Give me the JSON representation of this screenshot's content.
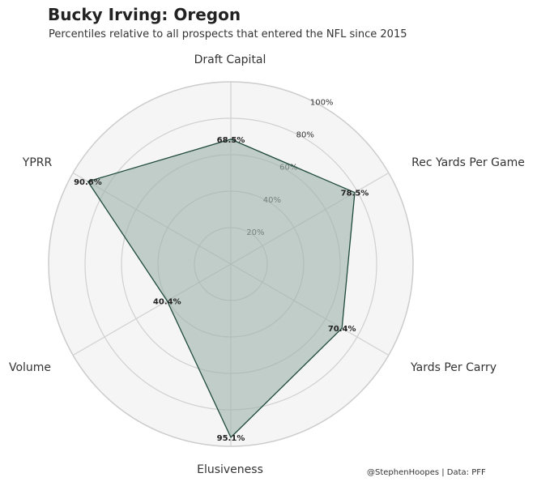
{
  "header": {
    "title": "Bucky Irving: Oregon",
    "subtitle": "Percentiles relative to all prospects that entered the NFL since 2015"
  },
  "footer": {
    "credit": "@StephenHoopes | Data: PFF"
  },
  "chart_data": {
    "type": "radar",
    "title": "Bucky Irving: Oregon",
    "subtitle": "Percentiles relative to all prospects that entered the NFL since 2015",
    "categories": [
      "Draft Capital",
      "Rec Yards Per Game",
      "Yards Per Carry",
      "Elusiveness",
      "Volume",
      "YPRR"
    ],
    "series": [
      {
        "values": [
          68.5,
          78.5,
          70.4,
          95.1,
          40.4,
          90.6
        ],
        "value_labels": [
          "68.5%",
          "78.5%",
          "70.4%",
          "95.1%",
          "40.4%",
          "90.6%"
        ]
      }
    ],
    "rlim": [
      0,
      100
    ],
    "r_ticks": [
      20,
      40,
      60,
      80,
      100
    ],
    "r_tick_labels": [
      "20%",
      "40%",
      "60%",
      "80%",
      "100%"
    ],
    "grid": true,
    "colors": {
      "fill": "#9db3aa",
      "line": "#1f4a3c",
      "grid": "#d0d0d0",
      "background": "#f5f5f5"
    }
  }
}
